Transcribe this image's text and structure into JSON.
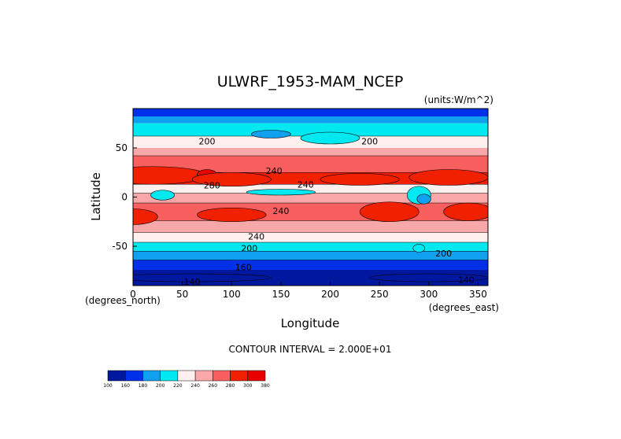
{
  "chart_data": {
    "type": "heatmap",
    "title": "ULWRF_1953-MAM_NCEP",
    "units_label": "(units:W/m^2)",
    "xlabel": "Longitude",
    "ylabel": "Latitude",
    "x_unit_note": "(degrees_east)",
    "y_unit_note": "(degrees_north)",
    "xlim": [
      0,
      360
    ],
    "ylim": [
      -90,
      90
    ],
    "x_ticks": [
      0,
      50,
      100,
      150,
      200,
      250,
      300,
      350
    ],
    "y_ticks": [
      -50,
      0,
      50
    ],
    "footer": "CONTOUR INTERVAL = 2.000E+01",
    "contour_interval": 20,
    "colorbar": {
      "levels": [
        "100",
        "160",
        "180",
        "200",
        "220",
        "240",
        "260",
        "280",
        "300",
        "380"
      ],
      "colors": [
        "#0018a0",
        "#0030e8",
        "#10a0f0",
        "#00e8f0",
        "#fff0f0",
        "#f8a8a8",
        "#f86060",
        "#f02000",
        "#e80000"
      ]
    },
    "contour_labels": [
      {
        "text": "200",
        "lon": 75,
        "lat": 57
      },
      {
        "text": "200",
        "lon": 240,
        "lat": 57
      },
      {
        "text": "240",
        "lon": 143,
        "lat": 27
      },
      {
        "text": "280",
        "lon": 80,
        "lat": 12
      },
      {
        "text": "240",
        "lon": 175,
        "lat": 13
      },
      {
        "text": "240",
        "lon": 150,
        "lat": -14
      },
      {
        "text": "240",
        "lon": 125,
        "lat": -40
      },
      {
        "text": "200",
        "lon": 118,
        "lat": -52
      },
      {
        "text": "200",
        "lon": 315,
        "lat": -57
      },
      {
        "text": "160",
        "lon": 112,
        "lat": -71
      },
      {
        "text": "140",
        "lon": 60,
        "lat": -86
      },
      {
        "text": "140",
        "lon": 338,
        "lat": -84
      }
    ]
  }
}
